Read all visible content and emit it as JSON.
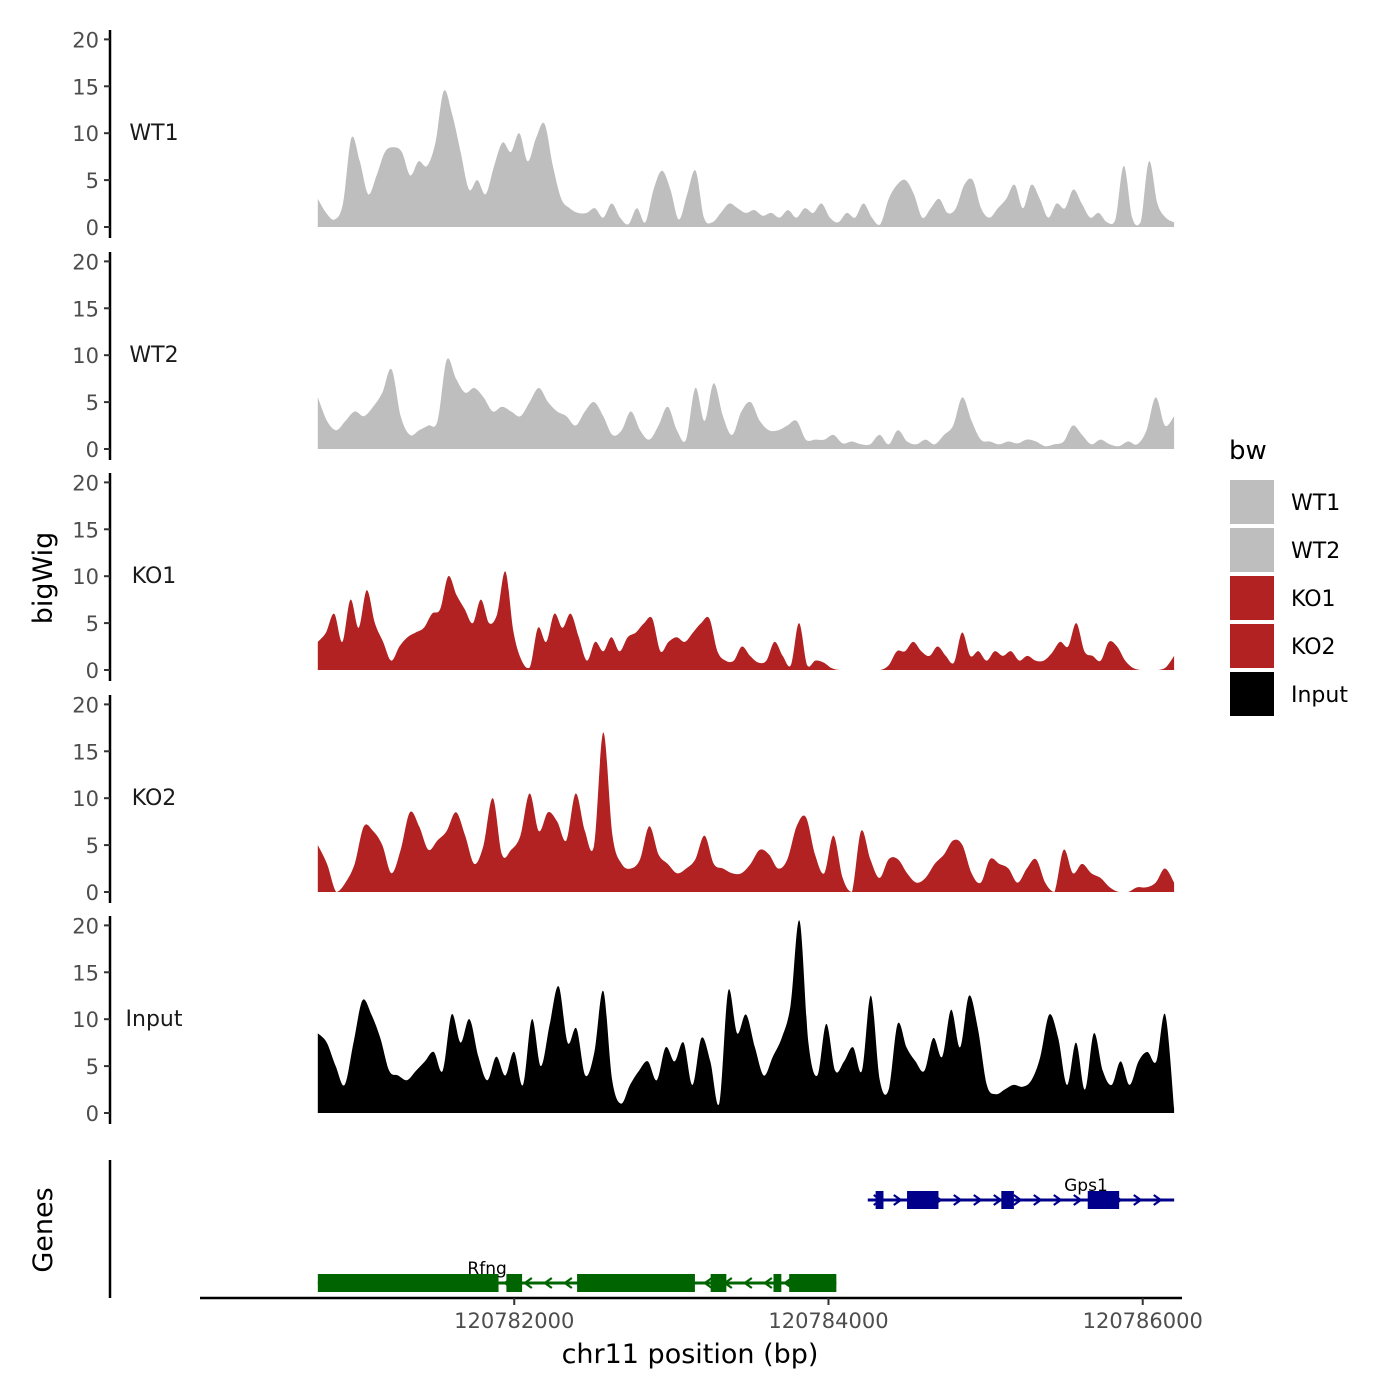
{
  "chart_data": {
    "type": "area",
    "title": "",
    "ylabel": "bigWig",
    "xlabel": "chr11 position (bp)",
    "genes_label": "Genes",
    "ylim": [
      0,
      21
    ],
    "yticks": [
      0,
      5,
      10,
      15,
      20
    ],
    "xlim": [
      120780000,
      120786250
    ],
    "xticks": [
      120782000,
      120784000,
      120786000
    ],
    "xtick_labels": [
      "120782000",
      "120784000",
      "120786000"
    ],
    "x_start": 120780750,
    "x_end": 120786200,
    "legend": {
      "title": "bw",
      "position": "right",
      "entries": [
        {
          "label": "WT1",
          "color": "#bebebe"
        },
        {
          "label": "WT2",
          "color": "#bebebe"
        },
        {
          "label": "KO1",
          "color": "#b22222"
        },
        {
          "label": "KO2",
          "color": "#b22222"
        },
        {
          "label": "Input",
          "color": "#000000"
        }
      ]
    },
    "series": [
      {
        "name": "WT1",
        "color": "#bebebe",
        "values": [
          3.0,
          1.5,
          0.8,
          2.5,
          9.5,
          7.0,
          3.5,
          5.5,
          8.0,
          8.5,
          8.0,
          5.5,
          7.0,
          6.5,
          9.0,
          14.5,
          12.0,
          8.0,
          4.0,
          5.0,
          3.5,
          6.5,
          9.0,
          8.0,
          10.0,
          7.0,
          9.5,
          11.0,
          6.5,
          3.0,
          2.0,
          1.5,
          1.5,
          2.0,
          1.0,
          2.5,
          1.0,
          0.3,
          2.0,
          0.5,
          4.0,
          6.0,
          4.0,
          0.8,
          3.5,
          6.0,
          1.0,
          0.5,
          1.5,
          2.5,
          2.0,
          1.5,
          1.8,
          1.2,
          1.5,
          1.0,
          1.8,
          1.0,
          2.0,
          1.5,
          2.5,
          1.0,
          0.5,
          1.5,
          1.0,
          2.5,
          1.0,
          0.3,
          3.0,
          4.5,
          5.0,
          3.5,
          1.0,
          2.0,
          3.0,
          1.5,
          2.0,
          4.5,
          5.0,
          2.0,
          1.0,
          2.0,
          3.0,
          4.5,
          2.0,
          4.5,
          3.0,
          1.0,
          2.5,
          2.0,
          4.0,
          2.5,
          1.0,
          1.5,
          0.5,
          0.8,
          6.5,
          1.0,
          0.5,
          7.0,
          2.5,
          1.0,
          0.5
        ]
      },
      {
        "name": "WT2",
        "color": "#bebebe",
        "values": [
          5.5,
          3.0,
          2.0,
          3.0,
          4.0,
          3.5,
          4.5,
          6.0,
          8.5,
          3.5,
          1.5,
          2.0,
          2.5,
          3.0,
          9.5,
          7.5,
          6.0,
          6.5,
          5.5,
          4.0,
          4.5,
          4.0,
          3.5,
          5.0,
          6.5,
          5.0,
          4.0,
          3.5,
          2.5,
          4.0,
          5.0,
          3.5,
          1.5,
          2.0,
          4.0,
          2.0,
          1.0,
          2.5,
          4.5,
          2.0,
          1.0,
          6.5,
          3.0,
          7.0,
          3.5,
          1.5,
          4.0,
          5.0,
          3.0,
          2.0,
          2.0,
          2.5,
          3.0,
          1.0,
          1.0,
          1.0,
          1.5,
          0.6,
          0.8,
          0.5,
          0.5,
          1.5,
          0.5,
          2.0,
          0.8,
          0.5,
          1.0,
          0.5,
          1.5,
          2.5,
          5.5,
          3.0,
          1.0,
          0.8,
          0.5,
          0.8,
          0.6,
          1.0,
          0.8,
          0.3,
          0.5,
          0.8,
          2.5,
          1.5,
          0.5,
          1.0,
          0.5,
          0.3,
          0.8,
          0.5,
          2.0,
          5.5,
          2.5,
          3.5
        ]
      },
      {
        "name": "KO1",
        "color": "#b22222",
        "values": [
          3.0,
          4.0,
          6.0,
          3.0,
          7.5,
          4.5,
          8.5,
          5.0,
          3.0,
          1.0,
          2.5,
          3.5,
          4.0,
          4.5,
          6.0,
          6.5,
          10.0,
          8.0,
          6.5,
          5.0,
          7.5,
          5.0,
          6.0,
          10.5,
          4.0,
          1.0,
          0.3,
          4.5,
          3.0,
          6.0,
          4.5,
          6.0,
          3.5,
          1.0,
          3.0,
          2.0,
          3.5,
          2.0,
          3.5,
          4.0,
          5.0,
          5.5,
          2.0,
          3.0,
          3.5,
          3.0,
          4.0,
          5.0,
          5.5,
          2.0,
          1.0,
          1.0,
          2.5,
          1.5,
          0.8,
          1.0,
          3.0,
          1.5,
          0.5,
          5.0,
          0.5,
          1.0,
          0.8,
          0.2,
          0.0,
          0.0,
          0.0,
          0.0,
          0.0,
          0.0,
          0.5,
          2.0,
          2.0,
          3.0,
          2.0,
          1.5,
          2.5,
          1.5,
          0.8,
          4.0,
          1.5,
          2.0,
          1.0,
          2.0,
          1.5,
          2.0,
          1.0,
          1.5,
          1.0,
          1.0,
          1.8,
          3.0,
          2.5,
          5.0,
          2.0,
          1.5,
          1.0,
          3.0,
          2.5,
          1.0,
          0.2,
          0.0,
          0.0,
          0.0,
          0.3,
          1.5
        ]
      },
      {
        "name": "KO2",
        "color": "#b22222",
        "values": [
          5.0,
          3.0,
          0.0,
          1.0,
          3.0,
          7.0,
          6.5,
          5.0,
          2.0,
          4.5,
          8.5,
          7.0,
          4.5,
          5.5,
          6.5,
          8.5,
          6.0,
          3.0,
          5.0,
          10.0,
          4.0,
          4.5,
          6.0,
          10.5,
          6.5,
          8.5,
          7.5,
          5.5,
          10.5,
          6.5,
          5.0,
          17.0,
          6.0,
          3.0,
          2.5,
          3.5,
          7.0,
          4.0,
          3.0,
          2.0,
          2.5,
          3.5,
          6.0,
          3.0,
          2.5,
          2.0,
          2.0,
          3.0,
          4.5,
          4.0,
          2.5,
          3.5,
          7.0,
          8.0,
          4.0,
          2.0,
          6.0,
          1.5,
          0.0,
          6.5,
          3.5,
          1.5,
          3.5,
          3.5,
          2.0,
          1.0,
          1.5,
          3.0,
          4.0,
          5.5,
          5.0,
          2.0,
          1.0,
          3.5,
          3.0,
          2.5,
          1.0,
          2.5,
          3.5,
          1.0,
          0.0,
          4.5,
          2.0,
          3.0,
          2.0,
          1.5,
          0.5,
          0.0,
          0.0,
          0.5,
          0.5,
          1.0,
          2.5,
          1.0
        ]
      },
      {
        "name": "Input",
        "color": "#000000",
        "values": [
          8.5,
          7.5,
          5.0,
          3.0,
          7.5,
          12.0,
          10.5,
          8.0,
          4.5,
          4.0,
          3.5,
          4.5,
          5.5,
          6.5,
          4.5,
          10.5,
          7.5,
          10.0,
          6.0,
          3.5,
          6.0,
          4.0,
          6.5,
          3.0,
          10.0,
          5.0,
          9.5,
          13.5,
          7.5,
          9.0,
          4.0,
          6.5,
          13.0,
          3.5,
          1.0,
          3.0,
          4.5,
          5.5,
          3.5,
          7.0,
          5.5,
          7.5,
          3.0,
          8.0,
          5.5,
          1.0,
          13.0,
          8.5,
          10.5,
          7.0,
          4.0,
          6.0,
          8.0,
          11.5,
          20.5,
          7.5,
          4.0,
          9.5,
          4.5,
          5.5,
          7.0,
          4.5,
          12.5,
          3.5,
          2.5,
          9.5,
          7.0,
          5.5,
          4.5,
          8.0,
          6.0,
          11.0,
          7.0,
          12.5,
          9.0,
          3.0,
          2.0,
          2.5,
          3.0,
          2.8,
          3.5,
          6.0,
          10.5,
          8.0,
          3.0,
          7.5,
          2.5,
          8.5,
          4.5,
          3.0,
          5.5,
          3.0,
          5.5,
          6.5,
          5.5,
          10.5,
          0.5
        ]
      }
    ],
    "genes": [
      {
        "name": "Rfng",
        "strand": "-",
        "color": "#006400",
        "start": 120780750,
        "end": 120784050,
        "exons": [
          [
            120780750,
            120781900
          ],
          [
            120781950,
            120782050
          ],
          [
            120782400,
            120783150
          ],
          [
            120783250,
            120783350
          ],
          [
            120783650,
            120783700
          ],
          [
            120783750,
            120784050
          ]
        ]
      },
      {
        "name": "Gps1",
        "strand": "+",
        "color": "#00008b",
        "start": 120784250,
        "end": 120786200,
        "exons": [
          [
            120784300,
            120784350
          ],
          [
            120784500,
            120784700
          ],
          [
            120785100,
            120785180
          ],
          [
            120785650,
            120785850
          ]
        ]
      }
    ]
  }
}
